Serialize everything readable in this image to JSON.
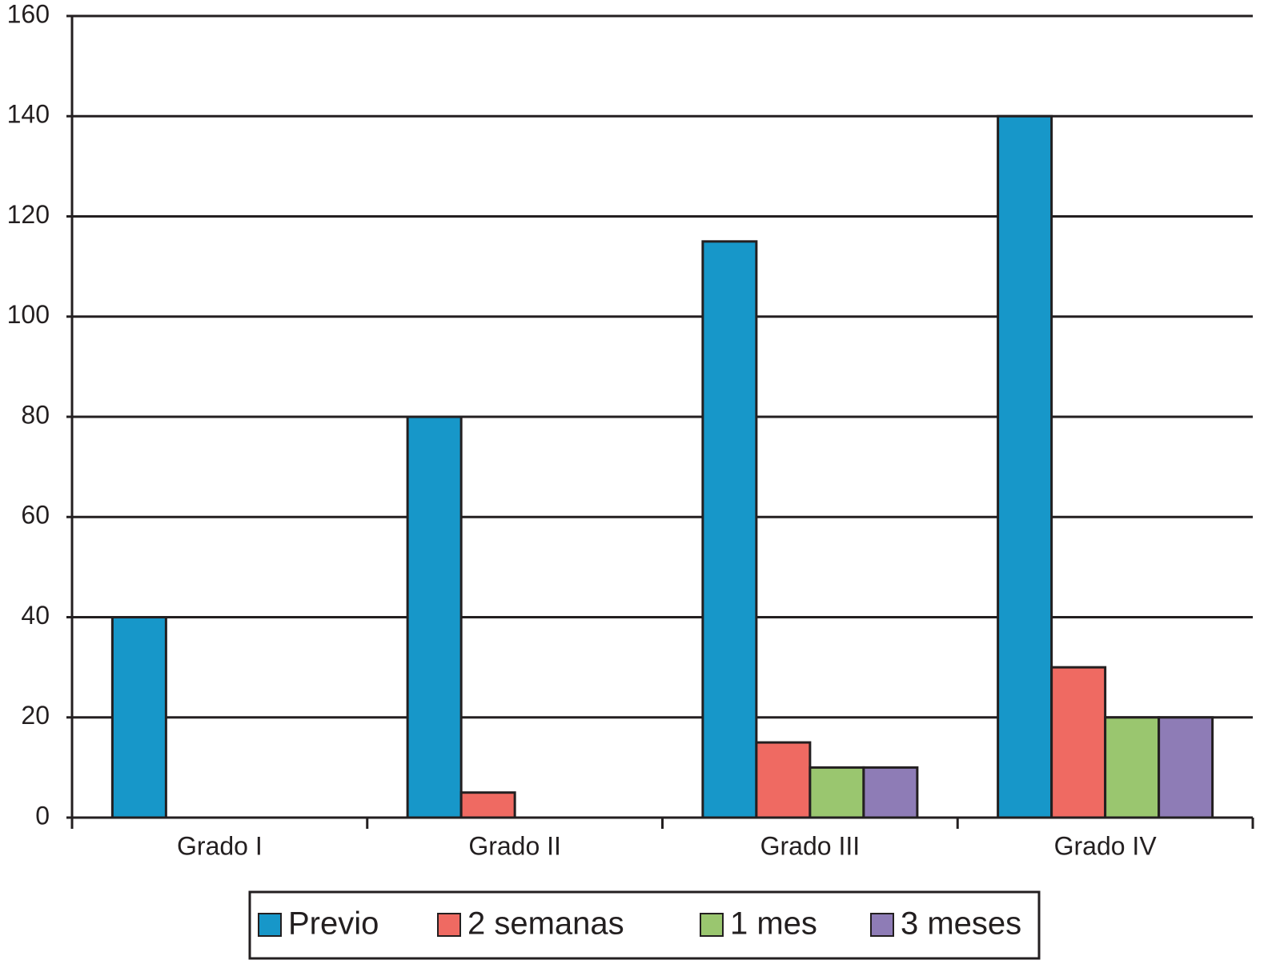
{
  "chart_data": {
    "type": "bar",
    "categories": [
      "Grado I",
      "Grado II",
      "Grado III",
      "Grado IV"
    ],
    "series": [
      {
        "name": "Previo",
        "color": "#1797c9",
        "values": [
          40,
          80,
          115,
          140
        ]
      },
      {
        "name": "2 semanas",
        "color": "#ef6a62",
        "values": [
          0,
          5,
          15,
          30
        ]
      },
      {
        "name": "1 mes",
        "color": "#9ac66f",
        "values": [
          0,
          0,
          10,
          20
        ]
      },
      {
        "name": "3 meses",
        "color": "#8e7cb6",
        "values": [
          0,
          0,
          10,
          20
        ]
      }
    ],
    "ylim": [
      0,
      160
    ],
    "yticks": [
      0,
      20,
      40,
      60,
      80,
      100,
      120,
      140,
      160
    ],
    "grid": true
  }
}
